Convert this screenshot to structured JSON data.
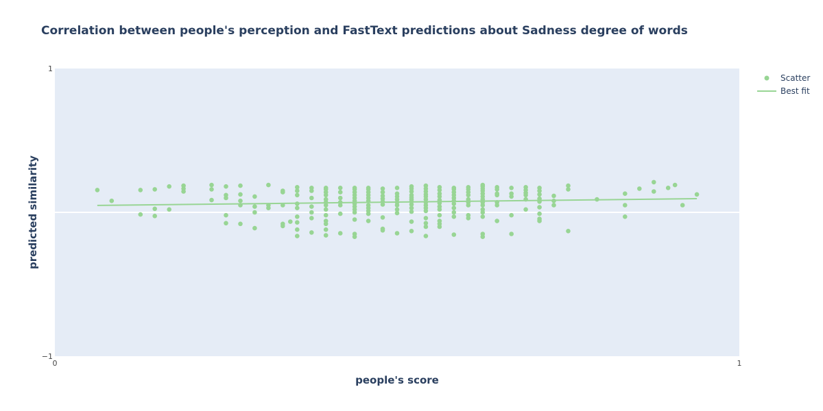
{
  "chart_data": {
    "type": "scatter",
    "title": "Correlation between people's perception and FastText predictions about Sadness degree of words",
    "xlabel": "people's score",
    "ylabel": "predicted similarity",
    "xlim": [
      0,
      1
    ],
    "ylim": [
      -1,
      1
    ],
    "x_ticks": [
      "0",
      "1"
    ],
    "y_ticks": [
      "−1",
      "1"
    ],
    "grid": false,
    "zero_line": true,
    "legend_position": "top-right",
    "colors": {
      "series": "#98d594",
      "plot_bg": "#e5ecf6",
      "zero_line": "#ffffff",
      "text": "#2a3f5f"
    },
    "series": [
      {
        "name": "Scatter",
        "mode": "markers",
        "points": [
          [
            0.062,
            0.155
          ],
          [
            0.083,
            0.08
          ],
          [
            0.125,
            0.155
          ],
          [
            0.125,
            -0.015
          ],
          [
            0.146,
            0.16
          ],
          [
            0.146,
            0.025
          ],
          [
            0.146,
            -0.025
          ],
          [
            0.167,
            0.18
          ],
          [
            0.167,
            0.02
          ],
          [
            0.188,
            0.185
          ],
          [
            0.188,
            0.165
          ],
          [
            0.188,
            0.145
          ],
          [
            0.229,
            0.19
          ],
          [
            0.229,
            0.16
          ],
          [
            0.229,
            0.085
          ],
          [
            0.25,
            0.18
          ],
          [
            0.25,
            0.12
          ],
          [
            0.25,
            0.1
          ],
          [
            0.25,
            -0.02
          ],
          [
            0.25,
            -0.075
          ],
          [
            0.271,
            0.185
          ],
          [
            0.271,
            0.125
          ],
          [
            0.271,
            0.08
          ],
          [
            0.271,
            0.05
          ],
          [
            0.271,
            -0.08
          ],
          [
            0.292,
            0.11
          ],
          [
            0.292,
            0.04
          ],
          [
            0.292,
            0.0
          ],
          [
            0.292,
            -0.11
          ],
          [
            0.312,
            0.19
          ],
          [
            0.312,
            0.05
          ],
          [
            0.312,
            0.03
          ],
          [
            0.333,
            0.15
          ],
          [
            0.333,
            0.14
          ],
          [
            0.333,
            0.05
          ],
          [
            0.333,
            -0.08
          ],
          [
            0.333,
            -0.095
          ],
          [
            0.344,
            -0.065
          ],
          [
            0.354,
            0.175
          ],
          [
            0.354,
            0.15
          ],
          [
            0.354,
            0.12
          ],
          [
            0.354,
            0.06
          ],
          [
            0.354,
            0.03
          ],
          [
            0.354,
            -0.03
          ],
          [
            0.354,
            -0.07
          ],
          [
            0.354,
            -0.12
          ],
          [
            0.354,
            -0.165
          ],
          [
            0.375,
            0.17
          ],
          [
            0.375,
            0.15
          ],
          [
            0.375,
            0.1
          ],
          [
            0.375,
            0.04
          ],
          [
            0.375,
            0.0
          ],
          [
            0.375,
            -0.04
          ],
          [
            0.375,
            -0.14
          ],
          [
            0.396,
            0.17
          ],
          [
            0.396,
            0.16
          ],
          [
            0.396,
            0.14
          ],
          [
            0.396,
            0.12
          ],
          [
            0.396,
            0.09
          ],
          [
            0.396,
            0.07
          ],
          [
            0.396,
            0.05
          ],
          [
            0.396,
            0.02
          ],
          [
            0.396,
            -0.02
          ],
          [
            0.396,
            -0.06
          ],
          [
            0.396,
            -0.08
          ],
          [
            0.396,
            -0.12
          ],
          [
            0.396,
            -0.16
          ],
          [
            0.417,
            0.17
          ],
          [
            0.417,
            0.14
          ],
          [
            0.417,
            0.1
          ],
          [
            0.417,
            0.07
          ],
          [
            0.417,
            0.05
          ],
          [
            0.417,
            -0.01
          ],
          [
            0.417,
            -0.145
          ],
          [
            0.438,
            0.17
          ],
          [
            0.438,
            0.16
          ],
          [
            0.438,
            0.14
          ],
          [
            0.438,
            0.12
          ],
          [
            0.438,
            0.1
          ],
          [
            0.438,
            0.08
          ],
          [
            0.438,
            0.06
          ],
          [
            0.438,
            0.04
          ],
          [
            0.438,
            0.02
          ],
          [
            0.438,
            0.0
          ],
          [
            0.438,
            -0.05
          ],
          [
            0.438,
            -0.15
          ],
          [
            0.438,
            -0.17
          ],
          [
            0.458,
            0.17
          ],
          [
            0.458,
            0.16
          ],
          [
            0.458,
            0.14
          ],
          [
            0.458,
            0.12
          ],
          [
            0.458,
            0.1
          ],
          [
            0.458,
            0.08
          ],
          [
            0.458,
            0.05
          ],
          [
            0.458,
            0.03
          ],
          [
            0.458,
            0.01
          ],
          [
            0.458,
            -0.01
          ],
          [
            0.458,
            -0.06
          ],
          [
            0.479,
            0.165
          ],
          [
            0.479,
            0.14
          ],
          [
            0.479,
            0.115
          ],
          [
            0.479,
            0.095
          ],
          [
            0.479,
            0.075
          ],
          [
            0.479,
            0.055
          ],
          [
            0.479,
            -0.035
          ],
          [
            0.479,
            -0.115
          ],
          [
            0.479,
            -0.125
          ],
          [
            0.5,
            0.17
          ],
          [
            0.5,
            0.13
          ],
          [
            0.5,
            0.11
          ],
          [
            0.5,
            0.09
          ],
          [
            0.5,
            0.07
          ],
          [
            0.5,
            0.05
          ],
          [
            0.5,
            0.02
          ],
          [
            0.5,
            -0.005
          ],
          [
            0.5,
            -0.145
          ],
          [
            0.521,
            0.18
          ],
          [
            0.521,
            0.165
          ],
          [
            0.521,
            0.145
          ],
          [
            0.521,
            0.12
          ],
          [
            0.521,
            0.105
          ],
          [
            0.521,
            0.09
          ],
          [
            0.521,
            0.075
          ],
          [
            0.521,
            0.055
          ],
          [
            0.521,
            0.03
          ],
          [
            0.521,
            0.005
          ],
          [
            0.521,
            -0.065
          ],
          [
            0.521,
            -0.13
          ],
          [
            0.542,
            0.185
          ],
          [
            0.542,
            0.165
          ],
          [
            0.542,
            0.145
          ],
          [
            0.542,
            0.125
          ],
          [
            0.542,
            0.11
          ],
          [
            0.542,
            0.09
          ],
          [
            0.542,
            0.07
          ],
          [
            0.542,
            0.05
          ],
          [
            0.542,
            0.03
          ],
          [
            0.542,
            0.01
          ],
          [
            0.542,
            -0.04
          ],
          [
            0.542,
            -0.075
          ],
          [
            0.542,
            -0.1
          ],
          [
            0.542,
            -0.165
          ],
          [
            0.562,
            0.175
          ],
          [
            0.562,
            0.155
          ],
          [
            0.562,
            0.13
          ],
          [
            0.562,
            0.11
          ],
          [
            0.562,
            0.085
          ],
          [
            0.562,
            0.065
          ],
          [
            0.562,
            0.04
          ],
          [
            0.562,
            0.02
          ],
          [
            0.562,
            -0.02
          ],
          [
            0.562,
            -0.06
          ],
          [
            0.562,
            -0.08
          ],
          [
            0.562,
            -0.1
          ],
          [
            0.583,
            0.17
          ],
          [
            0.583,
            0.16
          ],
          [
            0.583,
            0.14
          ],
          [
            0.583,
            0.12
          ],
          [
            0.583,
            0.1
          ],
          [
            0.583,
            0.08
          ],
          [
            0.583,
            0.06
          ],
          [
            0.583,
            0.03
          ],
          [
            0.583,
            0.0
          ],
          [
            0.583,
            -0.03
          ],
          [
            0.583,
            -0.155
          ],
          [
            0.604,
            0.175
          ],
          [
            0.604,
            0.16
          ],
          [
            0.604,
            0.14
          ],
          [
            0.604,
            0.12
          ],
          [
            0.604,
            0.09
          ],
          [
            0.604,
            0.07
          ],
          [
            0.604,
            0.05
          ],
          [
            0.604,
            -0.02
          ],
          [
            0.604,
            -0.04
          ],
          [
            0.625,
            0.19
          ],
          [
            0.625,
            0.18
          ],
          [
            0.625,
            0.165
          ],
          [
            0.625,
            0.15
          ],
          [
            0.625,
            0.13
          ],
          [
            0.625,
            0.11
          ],
          [
            0.625,
            0.09
          ],
          [
            0.625,
            0.07
          ],
          [
            0.625,
            0.05
          ],
          [
            0.625,
            0.02
          ],
          [
            0.625,
            0.0
          ],
          [
            0.625,
            -0.03
          ],
          [
            0.625,
            -0.15
          ],
          [
            0.625,
            -0.17
          ],
          [
            0.646,
            0.175
          ],
          [
            0.646,
            0.16
          ],
          [
            0.646,
            0.13
          ],
          [
            0.646,
            0.12
          ],
          [
            0.646,
            0.07
          ],
          [
            0.646,
            0.05
          ],
          [
            0.646,
            -0.06
          ],
          [
            0.667,
            0.17
          ],
          [
            0.667,
            0.13
          ],
          [
            0.667,
            0.11
          ],
          [
            0.667,
            -0.02
          ],
          [
            0.667,
            -0.15
          ],
          [
            0.688,
            0.175
          ],
          [
            0.688,
            0.155
          ],
          [
            0.688,
            0.135
          ],
          [
            0.688,
            0.12
          ],
          [
            0.688,
            0.09
          ],
          [
            0.688,
            0.02
          ],
          [
            0.708,
            0.17
          ],
          [
            0.708,
            0.15
          ],
          [
            0.708,
            0.125
          ],
          [
            0.708,
            0.095
          ],
          [
            0.708,
            0.075
          ],
          [
            0.708,
            0.035
          ],
          [
            0.708,
            -0.01
          ],
          [
            0.708,
            -0.045
          ],
          [
            0.708,
            -0.06
          ],
          [
            0.729,
            0.115
          ],
          [
            0.729,
            0.08
          ],
          [
            0.729,
            0.05
          ],
          [
            0.75,
            0.185
          ],
          [
            0.75,
            0.16
          ],
          [
            0.75,
            -0.13
          ],
          [
            0.792,
            0.09
          ],
          [
            0.833,
            0.13
          ],
          [
            0.833,
            0.05
          ],
          [
            0.833,
            -0.03
          ],
          [
            0.854,
            0.165
          ],
          [
            0.875,
            0.21
          ],
          [
            0.875,
            0.145
          ],
          [
            0.896,
            0.17
          ],
          [
            0.906,
            0.19
          ],
          [
            0.917,
            0.05
          ],
          [
            0.938,
            0.125
          ]
        ]
      },
      {
        "name": "Best fit",
        "mode": "lines",
        "points": [
          [
            0.062,
            0.048
          ],
          [
            0.938,
            0.095
          ]
        ]
      }
    ]
  }
}
